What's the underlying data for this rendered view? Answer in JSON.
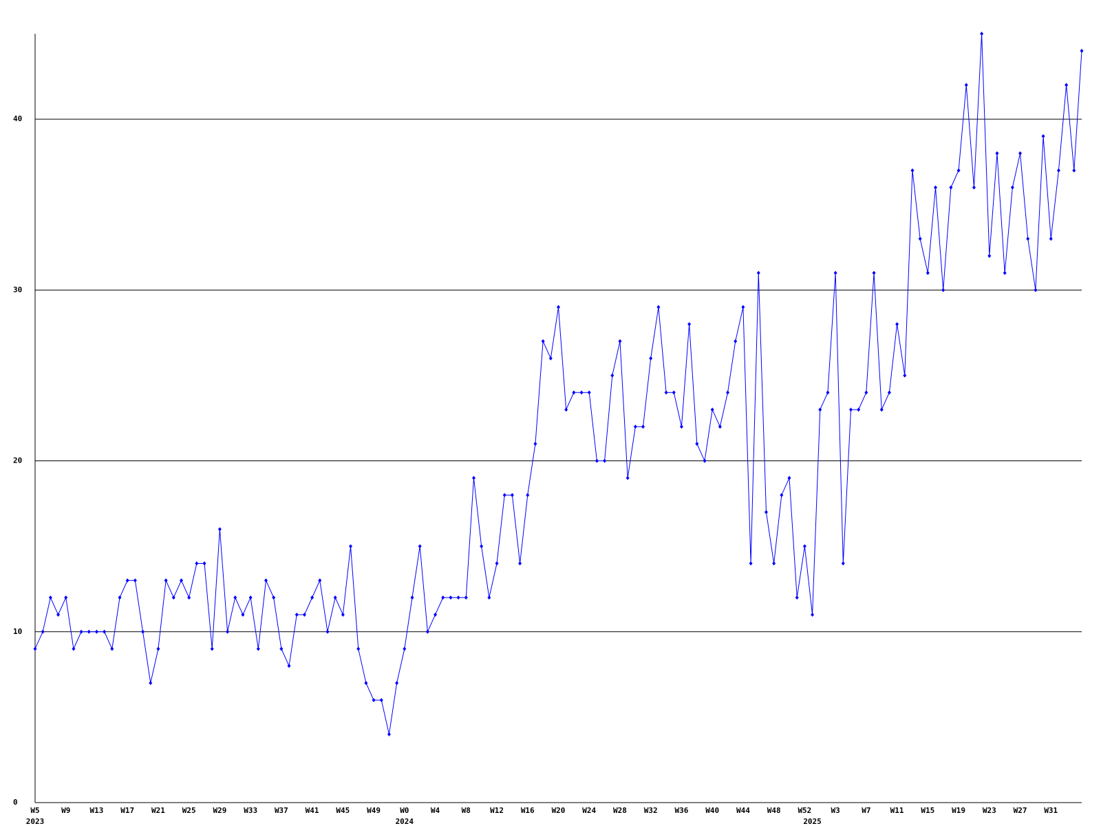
{
  "chart_data": {
    "type": "line",
    "categories": [
      "W5",
      null,
      null,
      null,
      "W9",
      null,
      null,
      null,
      "W13",
      null,
      null,
      null,
      "W17",
      null,
      null,
      null,
      "W21",
      null,
      null,
      null,
      "W25",
      null,
      null,
      null,
      "W29",
      null,
      null,
      null,
      "W33",
      null,
      null,
      null,
      "W37",
      null,
      null,
      null,
      "W41",
      null,
      null,
      null,
      "W45",
      null,
      null,
      null,
      "W49",
      null,
      null,
      null,
      "W0",
      null,
      null,
      null,
      "W4",
      null,
      null,
      null,
      "W8",
      null,
      null,
      null,
      "W12",
      null,
      null,
      null,
      "W16",
      null,
      null,
      null,
      "W20",
      null,
      null,
      null,
      "W24",
      null,
      null,
      null,
      "W28",
      null,
      null,
      null,
      "W32",
      null,
      null,
      null,
      "W36",
      null,
      null,
      null,
      "W40",
      null,
      null,
      null,
      "W44",
      null,
      null,
      null,
      "W48",
      null,
      null,
      null,
      "W52",
      null,
      null,
      null,
      "W3",
      null,
      null,
      null,
      "W7",
      null,
      null,
      null,
      "W11",
      null,
      null,
      null,
      "W15",
      null,
      null,
      null,
      "W19",
      null,
      null,
      null,
      "W23",
      null,
      null,
      null,
      "W27",
      null,
      null,
      null,
      "W31",
      null,
      null,
      null,
      null
    ],
    "category_years": [
      "2023",
      null,
      null,
      null,
      null,
      null,
      null,
      null,
      null,
      null,
      null,
      null,
      null,
      null,
      null,
      null,
      null,
      null,
      null,
      null,
      null,
      null,
      null,
      null,
      null,
      null,
      null,
      null,
      null,
      null,
      null,
      null,
      null,
      null,
      null,
      null,
      null,
      null,
      null,
      null,
      null,
      null,
      null,
      null,
      null,
      null,
      null,
      null,
      "2024",
      null,
      null,
      null,
      null,
      null,
      null,
      null,
      null,
      null,
      null,
      null,
      null,
      null,
      null,
      null,
      null,
      null,
      null,
      null,
      null,
      null,
      null,
      null,
      null,
      null,
      null,
      null,
      null,
      null,
      null,
      null,
      null,
      null,
      null,
      null,
      null,
      null,
      null,
      null,
      null,
      null,
      null,
      null,
      null,
      null,
      null,
      null,
      null,
      null,
      null,
      null,
      null,
      "2025",
      null,
      null,
      null,
      null,
      null,
      null,
      null,
      null,
      null,
      null,
      null,
      null,
      null,
      null,
      null,
      null,
      null,
      null,
      null,
      null,
      null,
      null,
      null,
      null,
      null,
      null,
      null,
      null,
      null,
      null,
      null,
      null,
      null,
      null,
      null
    ],
    "series": [
      {
        "color": "#0000ff",
        "values": [
          9,
          10,
          12,
          11,
          12,
          9,
          10,
          10,
          10,
          10,
          9,
          12,
          13,
          13,
          10,
          7,
          9,
          13,
          12,
          13,
          12,
          14,
          14,
          9,
          16,
          10,
          12,
          11,
          12,
          9,
          13,
          12,
          9,
          8,
          11,
          11,
          12,
          13,
          10,
          12,
          11,
          15,
          9,
          7,
          6,
          6,
          4,
          7,
          9,
          12,
          15,
          10,
          11,
          12,
          12,
          12,
          12,
          19,
          15,
          12,
          14,
          18,
          18,
          14,
          18,
          21,
          27,
          26,
          29,
          23,
          24,
          24,
          24,
          20,
          20,
          25,
          27,
          19,
          22,
          22,
          26,
          29,
          24,
          24,
          22,
          28,
          21,
          20,
          23,
          22,
          24,
          27,
          29,
          14,
          31,
          17,
          14,
          18,
          19,
          12,
          15,
          11,
          23,
          24,
          31,
          14,
          23,
          23,
          24,
          31,
          23,
          24,
          28,
          25,
          37,
          33,
          31,
          36,
          30,
          36,
          37,
          42,
          36,
          45,
          32,
          38,
          31,
          36,
          38,
          33,
          30,
          39,
          33,
          37,
          42,
          37,
          44
        ]
      }
    ],
    "ylim": [
      0,
      45
    ],
    "yticks": [
      0,
      10,
      20,
      30,
      40
    ],
    "grid": true
  }
}
